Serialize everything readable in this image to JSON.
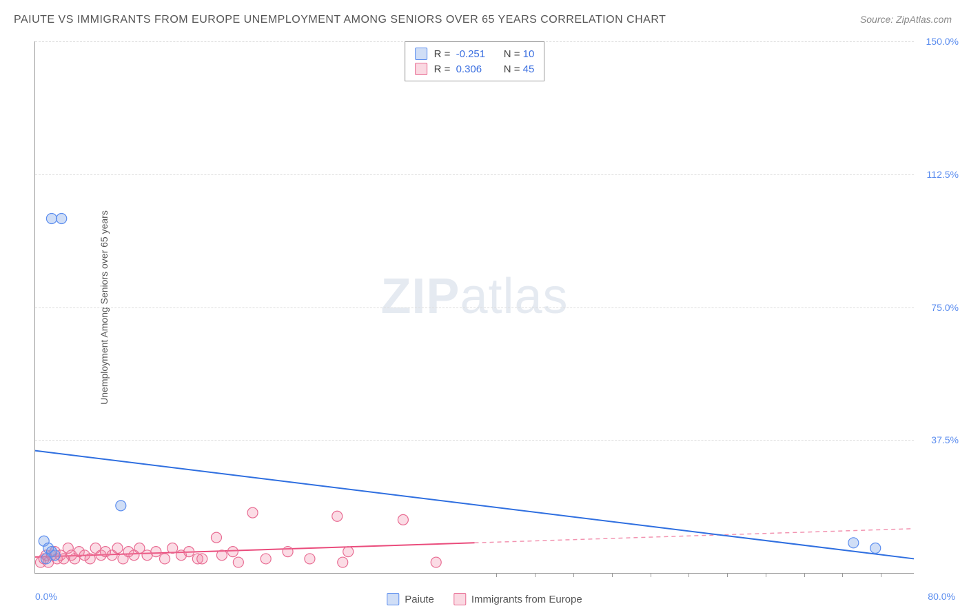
{
  "title": "PAIUTE VS IMMIGRANTS FROM EUROPE UNEMPLOYMENT AMONG SENIORS OVER 65 YEARS CORRELATION CHART",
  "source": "Source: ZipAtlas.com",
  "watermark_zip": "ZIP",
  "watermark_atlas": "atlas",
  "ylabel": "Unemployment Among Seniors over 65 years",
  "chart": {
    "type": "scatter-correlation",
    "xlim": [
      0,
      80
    ],
    "ylim": [
      0,
      150
    ],
    "xtick_min_label": "0.0%",
    "xtick_max_label": "80.0%",
    "xtick_marks": [
      42,
      45.5,
      49,
      52.5,
      56,
      59.5,
      63,
      66.5,
      70,
      73.5,
      77
    ],
    "yticks": [
      {
        "v": 37.5,
        "label": "37.5%"
      },
      {
        "v": 75.0,
        "label": "75.0%"
      },
      {
        "v": 112.5,
        "label": "112.5%"
      },
      {
        "v": 150.0,
        "label": "150.0%"
      }
    ],
    "grid_color": "#dddddd",
    "axis_color": "#999999",
    "background_color": "#ffffff"
  },
  "legend_top": {
    "rows": [
      {
        "swatch": "blue",
        "r_label": "R =",
        "r_value": "-0.251",
        "n_label": "N =",
        "n_value": "10"
      },
      {
        "swatch": "pink",
        "r_label": "R =",
        "r_value": "0.306",
        "n_label": "N =",
        "n_value": "45"
      }
    ]
  },
  "legend_bottom": {
    "items": [
      {
        "swatch": "blue",
        "label": "Paiute"
      },
      {
        "swatch": "pink",
        "label": "Immigrants from Europe"
      }
    ]
  },
  "series": {
    "blue": {
      "name": "Paiute",
      "marker_color": "rgba(120,160,230,0.35)",
      "marker_stroke": "#5b8def",
      "marker_radius": 7.5,
      "trend_color": "#2f6fe0",
      "trend_width": 2,
      "trend": {
        "x1": 0,
        "y1": 34.5,
        "x2": 80,
        "y2": 4.0
      },
      "points": [
        {
          "x": 1.5,
          "y": 100
        },
        {
          "x": 2.4,
          "y": 100
        },
        {
          "x": 0.8,
          "y": 9
        },
        {
          "x": 1.2,
          "y": 7
        },
        {
          "x": 1.5,
          "y": 6
        },
        {
          "x": 1.0,
          "y": 4
        },
        {
          "x": 7.8,
          "y": 19
        },
        {
          "x": 1.8,
          "y": 5
        },
        {
          "x": 74.5,
          "y": 8.5
        },
        {
          "x": 76.5,
          "y": 7
        }
      ]
    },
    "pink": {
      "name": "Immigrants from Europe",
      "marker_color": "rgba(240,130,160,0.28)",
      "marker_stroke": "#e86b92",
      "marker_radius": 7.5,
      "trend_color": "#ea4c7c",
      "trend_width": 2,
      "trend_solid": {
        "x1": 0,
        "y1": 4.5,
        "x2": 40,
        "y2": 8.5
      },
      "trend_dashed": {
        "x1": 40,
        "y1": 8.5,
        "x2": 80,
        "y2": 12.5
      },
      "points": [
        {
          "x": 0.5,
          "y": 3
        },
        {
          "x": 0.8,
          "y": 4
        },
        {
          "x": 1.0,
          "y": 5
        },
        {
          "x": 1.2,
          "y": 3
        },
        {
          "x": 1.5,
          "y": 5
        },
        {
          "x": 1.8,
          "y": 6
        },
        {
          "x": 2.0,
          "y": 4
        },
        {
          "x": 2.3,
          "y": 5
        },
        {
          "x": 2.6,
          "y": 4
        },
        {
          "x": 3.0,
          "y": 7
        },
        {
          "x": 3.3,
          "y": 5
        },
        {
          "x": 3.6,
          "y": 4
        },
        {
          "x": 4.0,
          "y": 6
        },
        {
          "x": 4.5,
          "y": 5
        },
        {
          "x": 5.0,
          "y": 4
        },
        {
          "x": 5.5,
          "y": 7
        },
        {
          "x": 6.0,
          "y": 5
        },
        {
          "x": 6.4,
          "y": 6
        },
        {
          "x": 7.0,
          "y": 5
        },
        {
          "x": 7.5,
          "y": 7
        },
        {
          "x": 8.0,
          "y": 4
        },
        {
          "x": 8.5,
          "y": 6
        },
        {
          "x": 9.0,
          "y": 5
        },
        {
          "x": 9.5,
          "y": 7
        },
        {
          "x": 10.2,
          "y": 5
        },
        {
          "x": 11.0,
          "y": 6
        },
        {
          "x": 11.8,
          "y": 4
        },
        {
          "x": 12.5,
          "y": 7
        },
        {
          "x": 13.3,
          "y": 5
        },
        {
          "x": 14.0,
          "y": 6
        },
        {
          "x": 14.8,
          "y": 4
        },
        {
          "x": 15.2,
          "y": 4
        },
        {
          "x": 16.5,
          "y": 10
        },
        {
          "x": 17.0,
          "y": 5
        },
        {
          "x": 18.0,
          "y": 6
        },
        {
          "x": 18.5,
          "y": 3
        },
        {
          "x": 19.8,
          "y": 17
        },
        {
          "x": 21.0,
          "y": 4
        },
        {
          "x": 23.0,
          "y": 6
        },
        {
          "x": 25.0,
          "y": 4
        },
        {
          "x": 27.5,
          "y": 16
        },
        {
          "x": 28.5,
          "y": 6
        },
        {
          "x": 33.5,
          "y": 15
        },
        {
          "x": 36.5,
          "y": 3
        },
        {
          "x": 28.0,
          "y": 3
        }
      ]
    }
  }
}
